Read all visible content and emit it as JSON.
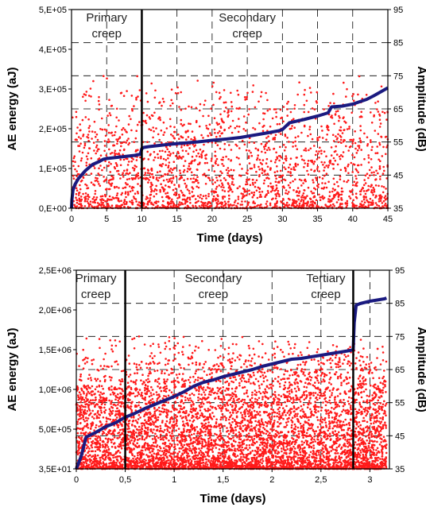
{
  "chart_data": [
    {
      "type": "scatter",
      "name": "top-chart",
      "xlabel": "Time (days)",
      "ylabel": "AE energy (aJ)",
      "y2label": "Amplitude (dB)",
      "xlim": [
        0,
        45
      ],
      "ylim": [
        0,
        500000
      ],
      "y2lim": [
        35,
        95
      ],
      "xticks": [
        "0",
        "5",
        "10",
        "15",
        "20",
        "25",
        "30",
        "35",
        "40",
        "45"
      ],
      "yticks": [
        "0,E+00",
        "1,E+05",
        "2,E+05",
        "3,E+05",
        "4,E+05",
        "5,E+05"
      ],
      "y2ticks": [
        "35",
        "45",
        "55",
        "65",
        "75",
        "85",
        "95"
      ],
      "grid": true,
      "phase_boundaries": [
        10
      ],
      "phase_labels": [
        {
          "lines": [
            "Primary",
            "creep"
          ],
          "x": 5
        },
        {
          "lines": [
            "Secondary",
            "creep"
          ],
          "x": 25
        }
      ],
      "series": [
        {
          "role": "cumulative AE energy",
          "axis": "left",
          "color": "#1a1a80",
          "x": [
            0,
            0.05,
            0.2,
            0.5,
            1,
            2,
            3,
            4,
            4.5,
            5,
            6,
            7,
            8,
            9,
            9.8,
            10,
            10.3,
            11,
            12,
            14,
            16,
            18,
            20,
            22,
            24,
            26,
            28,
            29.5,
            30,
            31,
            33,
            35,
            36.5,
            37,
            38.5,
            40,
            41,
            42,
            43,
            44,
            45
          ],
          "y": [
            0,
            20000,
            45000,
            60000,
            75000,
            95000,
            110000,
            118000,
            123000,
            125000,
            127000,
            129000,
            131000,
            133000,
            136000,
            150000,
            153000,
            155000,
            157000,
            161000,
            164000,
            167000,
            171000,
            174000,
            178000,
            184000,
            190000,
            195000,
            198000,
            215000,
            223000,
            232000,
            240000,
            255000,
            257000,
            262000,
            268000,
            274000,
            283000,
            293000,
            303000
          ]
        },
        {
          "role": "hit amplitude",
          "axis": "right",
          "color": "#ff1a1a",
          "x_range": [
            0,
            45
          ],
          "y_range": [
            35,
            75
          ]
        }
      ]
    },
    {
      "type": "scatter",
      "name": "bottom-chart",
      "xlabel": "Time (days)",
      "ylabel": "AE energy (aJ)",
      "y2label": "Amplitude (dB)",
      "xlim": [
        0,
        3.2
      ],
      "ylim": [
        35,
        2500000
      ],
      "y2lim": [
        35,
        95
      ],
      "xticks": [
        "0",
        "0,5",
        "1",
        "1,5",
        "2",
        "2,5",
        "3"
      ],
      "yticks": [
        "3,5E+01",
        "5,0E+05",
        "1,0E+06",
        "1,5E+06",
        "2,0E+06",
        "2,5E+06"
      ],
      "y2ticks": [
        "35",
        "45",
        "55",
        "65",
        "75",
        "85",
        "95"
      ],
      "grid": true,
      "phase_boundaries": [
        0.5,
        2.83
      ],
      "phase_labels": [
        {
          "lines": [
            "Primary",
            "creep"
          ],
          "x": 0.2
        },
        {
          "lines": [
            "Secondary",
            "creep"
          ],
          "x": 1.4
        },
        {
          "lines": [
            "Tertiary",
            "creep"
          ],
          "x": 2.55
        }
      ],
      "series": [
        {
          "role": "cumulative AE energy",
          "axis": "left",
          "color": "#1a1a80",
          "x": [
            0,
            0.05,
            0.1,
            0.2,
            0.3,
            0.4,
            0.5,
            0.6,
            0.7,
            0.8,
            0.9,
            1.0,
            1.1,
            1.2,
            1.3,
            1.4,
            1.5,
            1.6,
            1.7,
            1.8,
            1.9,
            2.0,
            2.1,
            2.2,
            2.3,
            2.4,
            2.5,
            2.6,
            2.7,
            2.8,
            2.83,
            2.84,
            2.86,
            2.9,
            3.0,
            3.1,
            3.15,
            3.17
          ],
          "y": [
            35,
            160000,
            400000,
            460000,
            530000,
            580000,
            650000,
            700000,
            760000,
            810000,
            860000,
            910000,
            970000,
            1040000,
            1090000,
            1120000,
            1160000,
            1190000,
            1220000,
            1250000,
            1290000,
            1320000,
            1350000,
            1380000,
            1390000,
            1410000,
            1430000,
            1450000,
            1470000,
            1490000,
            1500000,
            1840000,
            2060000,
            2080000,
            2110000,
            2130000,
            2140000,
            2150000
          ]
        },
        {
          "role": "hit amplitude",
          "axis": "right",
          "color": "#ff1a1a",
          "x_range": [
            0,
            3.17
          ],
          "y_range": [
            35,
            75
          ]
        }
      ]
    }
  ]
}
